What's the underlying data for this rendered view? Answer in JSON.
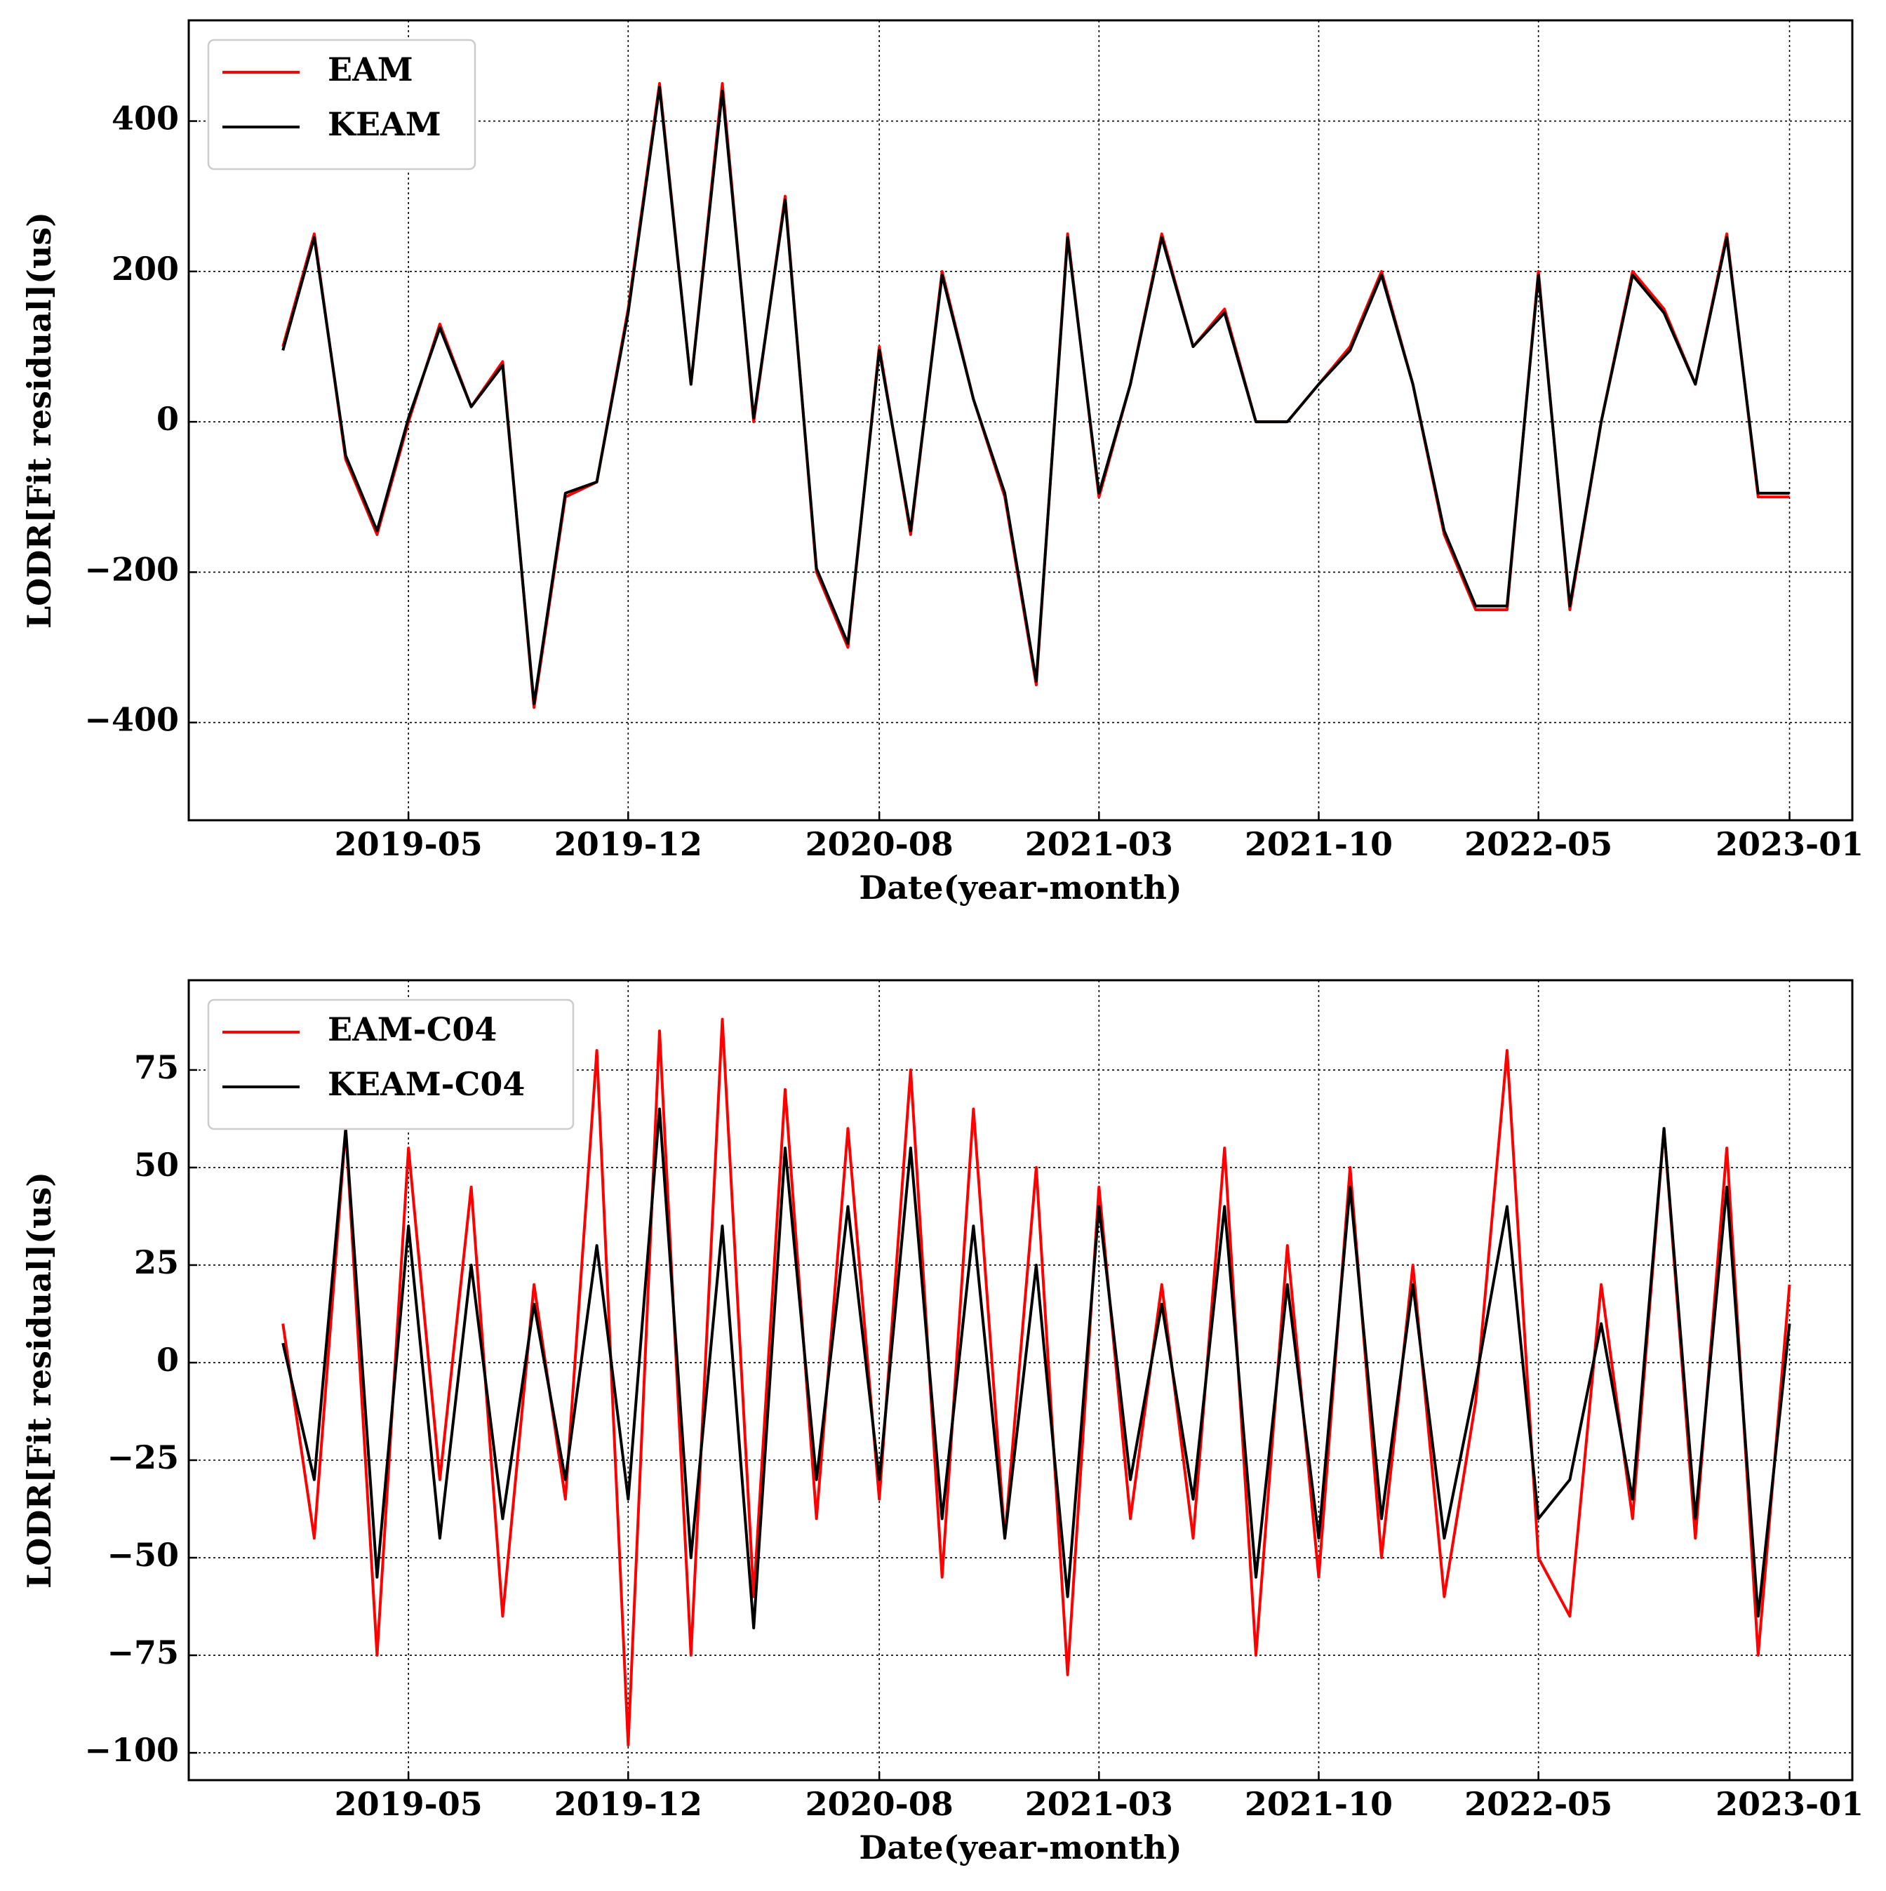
{
  "chart_data": [
    {
      "type": "line",
      "xlabel": "Date(year-month)",
      "ylabel": "LODR[Fit residual](us)",
      "x": [
        "2019-01",
        "2019-02",
        "2019-03",
        "2019-04",
        "2019-05",
        "2019-06",
        "2019-07",
        "2019-08",
        "2019-09",
        "2019-10",
        "2019-11",
        "2019-12",
        "2020-01",
        "2020-02",
        "2020-03",
        "2020-04",
        "2020-05",
        "2020-06",
        "2020-07",
        "2020-08",
        "2020-09",
        "2020-10",
        "2020-11",
        "2020-12",
        "2021-01",
        "2021-02",
        "2021-03",
        "2021-04",
        "2021-05",
        "2021-06",
        "2021-07",
        "2021-08",
        "2021-09",
        "2021-10",
        "2021-11",
        "2021-12",
        "2022-01",
        "2022-02",
        "2022-03",
        "2022-04",
        "2022-05",
        "2022-06",
        "2022-07",
        "2022-08",
        "2022-09",
        "2022-10",
        "2022-11",
        "2022-12",
        "2023-01"
      ],
      "series": [
        {
          "name": "EAM",
          "color": "#ff0000",
          "values": [
            100,
            250,
            -50,
            -150,
            0,
            130,
            20,
            80,
            -380,
            -100,
            -80,
            150,
            450,
            50,
            450,
            0,
            300,
            -200,
            -300,
            100,
            -150,
            200,
            30,
            -100,
            -350,
            250,
            -100,
            50,
            250,
            100,
            150,
            0,
            0,
            50,
            100,
            200,
            50,
            -150,
            -250,
            -250,
            200,
            -250,
            0,
            200,
            150,
            50,
            250,
            -100,
            -100
          ]
        },
        {
          "name": "KEAM",
          "color": "#000000",
          "values": [
            95,
            245,
            -45,
            -145,
            5,
            125,
            20,
            75,
            -375,
            -95,
            -80,
            145,
            445,
            50,
            440,
            5,
            295,
            -195,
            -295,
            95,
            -145,
            195,
            30,
            -95,
            -345,
            245,
            -95,
            50,
            245,
            100,
            145,
            0,
            0,
            50,
            95,
            195,
            50,
            -145,
            -245,
            -245,
            195,
            -245,
            0,
            195,
            145,
            50,
            245,
            -95,
            -95
          ]
        }
      ],
      "xlim": [
        "2018-10",
        "2023-03"
      ],
      "xticks": [
        "2019-05",
        "2019-12",
        "2020-08",
        "2021-03",
        "2021-10",
        "2022-05",
        "2023-01"
      ],
      "ylim": [
        -530,
        534
      ],
      "yticks": [
        {
          "value": -400,
          "label": "−400"
        },
        {
          "value": -200,
          "label": "−200"
        },
        0,
        200,
        400
      ],
      "grid": true,
      "legend": "upper left"
    },
    {
      "type": "line",
      "xlabel": "Date(year-month)",
      "ylabel": "LODR[Fit residual](us)",
      "x": [
        "2019-01",
        "2019-02",
        "2019-03",
        "2019-04",
        "2019-05",
        "2019-06",
        "2019-07",
        "2019-08",
        "2019-09",
        "2019-10",
        "2019-11",
        "2019-12",
        "2020-01",
        "2020-02",
        "2020-03",
        "2020-04",
        "2020-05",
        "2020-06",
        "2020-07",
        "2020-08",
        "2020-09",
        "2020-10",
        "2020-11",
        "2020-12",
        "2021-01",
        "2021-02",
        "2021-03",
        "2021-04",
        "2021-05",
        "2021-06",
        "2021-07",
        "2021-08",
        "2021-09",
        "2021-10",
        "2021-11",
        "2021-12",
        "2022-01",
        "2022-02",
        "2022-03",
        "2022-04",
        "2022-05",
        "2022-06",
        "2022-07",
        "2022-08",
        "2022-09",
        "2022-10",
        "2022-11",
        "2022-12",
        "2023-01"
      ],
      "series": [
        {
          "name": "EAM-C04",
          "color": "#ff0000",
          "values": [
            10,
            -45,
            60,
            -75,
            55,
            -30,
            45,
            -65,
            20,
            -35,
            80,
            -98,
            85,
            -75,
            88,
            -60,
            70,
            -40,
            60,
            -35,
            75,
            -55,
            65,
            -45,
            50,
            -80,
            45,
            -40,
            20,
            -45,
            55,
            -75,
            30,
            -55,
            50,
            -50,
            25,
            -60,
            -10,
            80,
            -50,
            -65,
            20,
            -40,
            60,
            -45,
            55,
            -75,
            20
          ]
        },
        {
          "name": "KEAM-C04",
          "color": "#000000",
          "values": [
            5,
            -30,
            60,
            -55,
            35,
            -45,
            25,
            -40,
            15,
            -30,
            30,
            -35,
            65,
            -50,
            35,
            -68,
            55,
            -30,
            40,
            -30,
            55,
            -40,
            35,
            -45,
            25,
            -60,
            40,
            -30,
            15,
            -35,
            40,
            -55,
            20,
            -45,
            45,
            -40,
            20,
            -45,
            -5,
            40,
            -40,
            -30,
            10,
            -35,
            60,
            -40,
            45,
            -65,
            10
          ]
        }
      ],
      "xlim": [
        "2018-10",
        "2023-03"
      ],
      "xticks": [
        "2019-05",
        "2019-12",
        "2020-08",
        "2021-03",
        "2021-10",
        "2022-05",
        "2023-01"
      ],
      "ylim": [
        -107,
        98
      ],
      "yticks": [
        {
          "value": -100,
          "label": "−100"
        },
        {
          "value": -75,
          "label": "−75"
        },
        {
          "value": -50,
          "label": "−50"
        },
        {
          "value": -25,
          "label": "−25"
        },
        0,
        25,
        50,
        75
      ],
      "grid": true,
      "legend": "upper left"
    }
  ]
}
